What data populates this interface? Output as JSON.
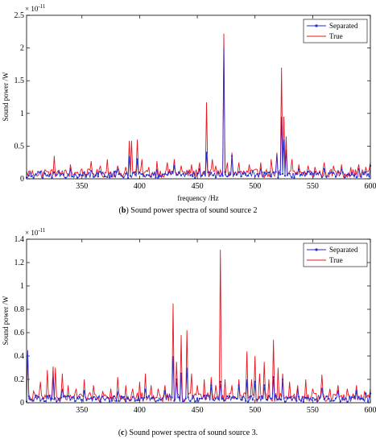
{
  "chart_data": [
    {
      "type": "line",
      "panel_label": "b",
      "caption": "Sound power spectra of sound source 2",
      "xlabel": "frequency /Hz",
      "ylabel": "Sound power /W",
      "exponent_label": "× 10",
      "exponent_power": "-11",
      "xlim": [
        302,
        600
      ],
      "ylim": [
        0,
        2.5
      ],
      "xticks": [
        350,
        400,
        450,
        500,
        550,
        600
      ],
      "yticks": [
        0,
        0.5,
        1,
        1.5,
        2,
        2.5
      ],
      "legend": {
        "position": "top-right",
        "entries": [
          "Separated",
          "True"
        ]
      },
      "baseline": {
        "separated": 0.09,
        "true": 0.12
      },
      "peaks_true": [
        [
          304,
          0.12
        ],
        [
          310,
          0.08
        ],
        [
          318,
          0.14
        ],
        [
          326,
          0.35
        ],
        [
          333,
          0.12
        ],
        [
          340,
          0.22
        ],
        [
          350,
          0.15
        ],
        [
          358,
          0.27
        ],
        [
          366,
          0.2
        ],
        [
          372,
          0.3
        ],
        [
          381,
          0.2
        ],
        [
          388,
          0.18
        ],
        [
          391,
          0.58
        ],
        [
          393,
          0.58
        ],
        [
          398,
          0.6
        ],
        [
          402,
          0.3
        ],
        [
          408,
          0.18
        ],
        [
          415,
          0.27
        ],
        [
          424,
          0.25
        ],
        [
          430,
          0.3
        ],
        [
          436,
          0.2
        ],
        [
          445,
          0.22
        ],
        [
          452,
          0.25
        ],
        [
          458,
          1.17
        ],
        [
          463,
          0.3
        ],
        [
          466,
          0.2
        ],
        [
          473,
          2.22
        ],
        [
          476,
          0.25
        ],
        [
          480,
          0.4
        ],
        [
          486,
          0.25
        ],
        [
          495,
          0.22
        ],
        [
          505,
          0.25
        ],
        [
          514,
          0.3
        ],
        [
          519,
          0.4
        ],
        [
          523,
          1.7
        ],
        [
          525,
          0.95
        ],
        [
          527,
          0.65
        ],
        [
          532,
          0.3
        ],
        [
          538,
          0.22
        ],
        [
          546,
          0.2
        ],
        [
          552,
          0.18
        ],
        [
          560,
          0.25
        ],
        [
          568,
          0.2
        ],
        [
          575,
          0.22
        ],
        [
          583,
          0.18
        ],
        [
          590,
          0.22
        ],
        [
          596,
          0.18
        ],
        [
          600,
          0.25
        ]
      ],
      "peaks_separated": [
        [
          304,
          0.05
        ],
        [
          326,
          0.1
        ],
        [
          340,
          0.15
        ],
        [
          358,
          0.12
        ],
        [
          381,
          0.15
        ],
        [
          391,
          0.35
        ],
        [
          398,
          0.3
        ],
        [
          415,
          0.15
        ],
        [
          430,
          0.2
        ],
        [
          452,
          0.15
        ],
        [
          458,
          0.4
        ],
        [
          473,
          2.01
        ],
        [
          480,
          0.35
        ],
        [
          505,
          0.15
        ],
        [
          519,
          0.38
        ],
        [
          523,
          0.95
        ],
        [
          525,
          0.6
        ],
        [
          527,
          0.45
        ],
        [
          538,
          0.15
        ],
        [
          560,
          0.15
        ],
        [
          575,
          0.15
        ],
        [
          590,
          0.15
        ],
        [
          600,
          0.2
        ]
      ]
    },
    {
      "type": "line",
      "panel_label": "c",
      "caption": "Sound power spectra of sound source 3.",
      "xlabel": "",
      "ylabel": "Sound power /W",
      "exponent_label": "× 10",
      "exponent_power": "-11",
      "xlim": [
        302,
        600
      ],
      "ylim": [
        0,
        1.4
      ],
      "xticks": [
        350,
        400,
        450,
        500,
        550,
        600
      ],
      "yticks": [
        0,
        0.2,
        0.4,
        0.6,
        0.8,
        1,
        1.2,
        1.4
      ],
      "legend": {
        "position": "top-right",
        "entries": [
          "Separated",
          "True"
        ]
      },
      "baseline": {
        "separated": 0.05,
        "true": 0.07
      },
      "peaks_true": [
        [
          303,
          0.44
        ],
        [
          308,
          0.1
        ],
        [
          314,
          0.18
        ],
        [
          320,
          0.28
        ],
        [
          325,
          0.31
        ],
        [
          327,
          0.3
        ],
        [
          333,
          0.25
        ],
        [
          338,
          0.15
        ],
        [
          345,
          0.12
        ],
        [
          352,
          0.2
        ],
        [
          360,
          0.15
        ],
        [
          368,
          0.1
        ],
        [
          375,
          0.12
        ],
        [
          381,
          0.22
        ],
        [
          388,
          0.15
        ],
        [
          394,
          0.12
        ],
        [
          400,
          0.18
        ],
        [
          405,
          0.25
        ],
        [
          410,
          0.15
        ],
        [
          416,
          0.12
        ],
        [
          422,
          0.15
        ],
        [
          429,
          0.85
        ],
        [
          432,
          0.35
        ],
        [
          436,
          0.58
        ],
        [
          441,
          0.62
        ],
        [
          445,
          0.25
        ],
        [
          450,
          0.15
        ],
        [
          456,
          0.2
        ],
        [
          462,
          0.22
        ],
        [
          466,
          0.15
        ],
        [
          470,
          1.31
        ],
        [
          474,
          0.2
        ],
        [
          480,
          0.15
        ],
        [
          486,
          0.2
        ],
        [
          493,
          0.44
        ],
        [
          497,
          0.2
        ],
        [
          500,
          0.4
        ],
        [
          504,
          0.25
        ],
        [
          508,
          0.35
        ],
        [
          512,
          0.2
        ],
        [
          516,
          0.54
        ],
        [
          520,
          0.3
        ],
        [
          524,
          0.25
        ],
        [
          530,
          0.18
        ],
        [
          537,
          0.15
        ],
        [
          544,
          0.2
        ],
        [
          550,
          0.12
        ],
        [
          558,
          0.24
        ],
        [
          565,
          0.12
        ],
        [
          572,
          0.15
        ],
        [
          580,
          0.12
        ],
        [
          588,
          0.15
        ],
        [
          595,
          0.1
        ],
        [
          600,
          0.12
        ]
      ],
      "peaks_separated": [
        [
          303,
          0.45
        ],
        [
          325,
          0.22
        ],
        [
          333,
          0.12
        ],
        [
          352,
          0.1
        ],
        [
          381,
          0.1
        ],
        [
          405,
          0.12
        ],
        [
          422,
          0.1
        ],
        [
          429,
          0.4
        ],
        [
          432,
          0.2
        ],
        [
          436,
          0.25
        ],
        [
          441,
          0.3
        ],
        [
          462,
          0.15
        ],
        [
          470,
          0.18
        ],
        [
          486,
          0.15
        ],
        [
          493,
          0.2
        ],
        [
          500,
          0.18
        ],
        [
          508,
          0.15
        ],
        [
          516,
          0.22
        ],
        [
          524,
          0.2
        ],
        [
          537,
          0.12
        ],
        [
          558,
          0.12
        ],
        [
          572,
          0.1
        ],
        [
          588,
          0.1
        ],
        [
          596,
          0.08
        ],
        [
          600,
          0.08
        ]
      ]
    }
  ],
  "colors": {
    "separated": "#1f2bd6",
    "true": "#e8141e",
    "axes": "#000000"
  }
}
